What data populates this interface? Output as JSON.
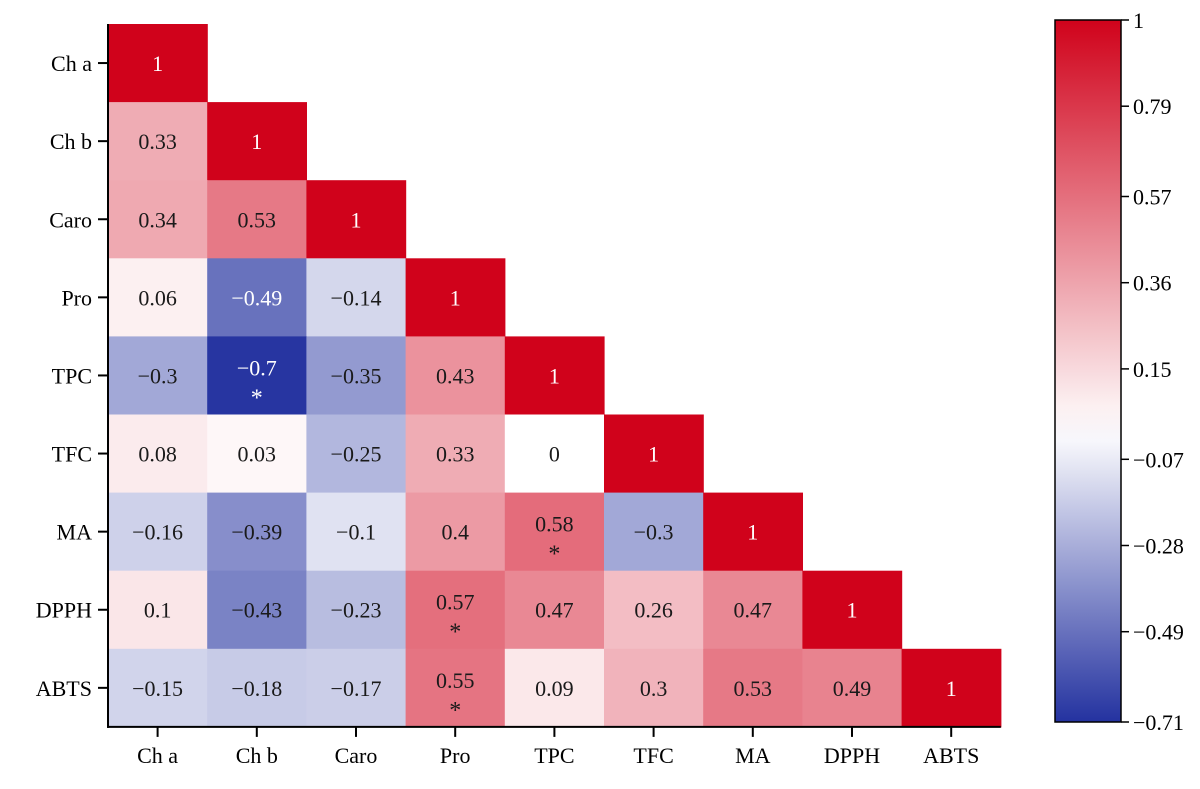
{
  "chart_data": {
    "type": "heatmap",
    "variables": [
      "Ch a",
      "Ch b",
      "Caro",
      "Pro",
      "TPC",
      "TFC",
      "MA",
      "DPPH",
      "ABTS"
    ],
    "matrix": [
      [
        1,
        null,
        null,
        null,
        null,
        null,
        null,
        null,
        null
      ],
      [
        0.33,
        1,
        null,
        null,
        null,
        null,
        null,
        null,
        null
      ],
      [
        0.34,
        0.53,
        1,
        null,
        null,
        null,
        null,
        null,
        null
      ],
      [
        0.06,
        -0.49,
        -0.14,
        1,
        null,
        null,
        null,
        null,
        null
      ],
      [
        -0.3,
        -0.7,
        -0.35,
        0.43,
        1,
        null,
        null,
        null,
        null
      ],
      [
        0.08,
        0.03,
        -0.25,
        0.33,
        0,
        1,
        null,
        null,
        null
      ],
      [
        -0.16,
        -0.39,
        -0.1,
        0.4,
        0.58,
        -0.3,
        1,
        null,
        null
      ],
      [
        0.1,
        -0.43,
        -0.23,
        0.57,
        0.47,
        0.26,
        0.47,
        1,
        null
      ],
      [
        -0.15,
        -0.18,
        -0.17,
        0.55,
        0.09,
        0.3,
        0.53,
        0.49,
        1
      ]
    ],
    "labels": [
      [
        "1"
      ],
      [
        "0.33",
        "1"
      ],
      [
        "0.34",
        "0.53",
        "1"
      ],
      [
        "0.06",
        "−0.49",
        "−0.14",
        "1"
      ],
      [
        "−0.3",
        "−0.7",
        "−0.35",
        "0.43",
        "1"
      ],
      [
        "0.08",
        "0.03",
        "−0.25",
        "0.33",
        "0",
        "1"
      ],
      [
        "−0.16",
        "−0.39",
        "−0.1",
        "0.4",
        "0.58",
        "−0.3",
        "1"
      ],
      [
        "0.1",
        "−0.43",
        "−0.23",
        "0.57",
        "0.47",
        "0.26",
        "0.47",
        "1"
      ],
      [
        "−0.15",
        "−0.18",
        "−0.17",
        "0.55",
        "0.09",
        "0.3",
        "0.53",
        "0.49",
        "1"
      ]
    ],
    "significance_marker": "*",
    "significant_cells": [
      {
        "row": "TPC",
        "col": "Ch b"
      },
      {
        "row": "MA",
        "col": "TPC"
      },
      {
        "row": "DPPH",
        "col": "Pro"
      },
      {
        "row": "ABTS",
        "col": "Pro"
      }
    ],
    "colorbar": {
      "range": [
        -0.71,
        1
      ],
      "ticks": [
        1,
        0.79,
        0.57,
        0.36,
        0.15,
        -0.07,
        -0.28,
        -0.49,
        -0.71
      ],
      "tick_labels": [
        "1",
        "0.79",
        "0.57",
        "0.36",
        "0.15",
        "−0.07",
        "−0.28",
        "−0.49",
        "−0.71"
      ],
      "colors": {
        "high": "#d0021b",
        "mid": "#ffffff",
        "low": "#2432a0"
      }
    },
    "lower_triangle_only": true,
    "grid": false
  }
}
